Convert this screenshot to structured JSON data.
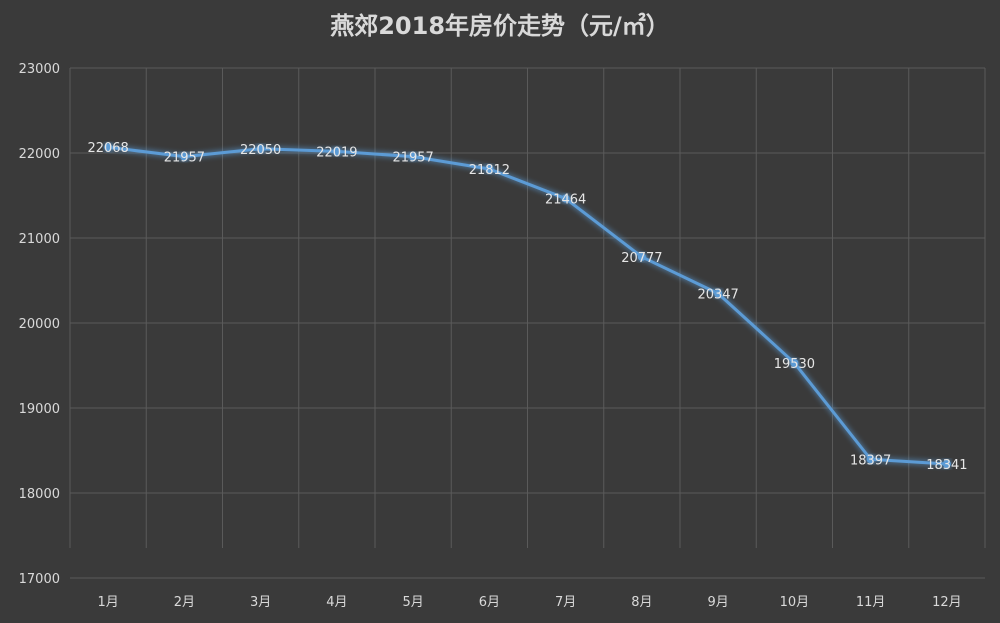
{
  "chart_data": {
    "type": "line",
    "title": "燕郊2018年房价走势（元/㎡）",
    "categories": [
      "1月",
      "2月",
      "3月",
      "4月",
      "5月",
      "6月",
      "7月",
      "8月",
      "9月",
      "10月",
      "11月",
      "12月"
    ],
    "series": [
      {
        "values": [
          22068,
          21957,
          22050,
          22019,
          21957,
          21812,
          21464,
          20777,
          20347,
          19530,
          18397,
          18341
        ],
        "labels": [
          "22068",
          "21957",
          "22050",
          "22019",
          "21957",
          "21812",
          "21464",
          "20777",
          "20347",
          "19530",
          "18397",
          "18341"
        ],
        "color": "#5b9bd5"
      }
    ],
    "ylim": [
      17000,
      23000
    ],
    "yticks": [
      "17000",
      "18000",
      "19000",
      "20000",
      "21000",
      "22000",
      "23000"
    ],
    "grid": true,
    "data_labels": true
  },
  "colors": {
    "background": "#3a3a3a",
    "line": "#5b9bd5",
    "grid": "#5a5a5a",
    "text": "#d9d9d9"
  }
}
